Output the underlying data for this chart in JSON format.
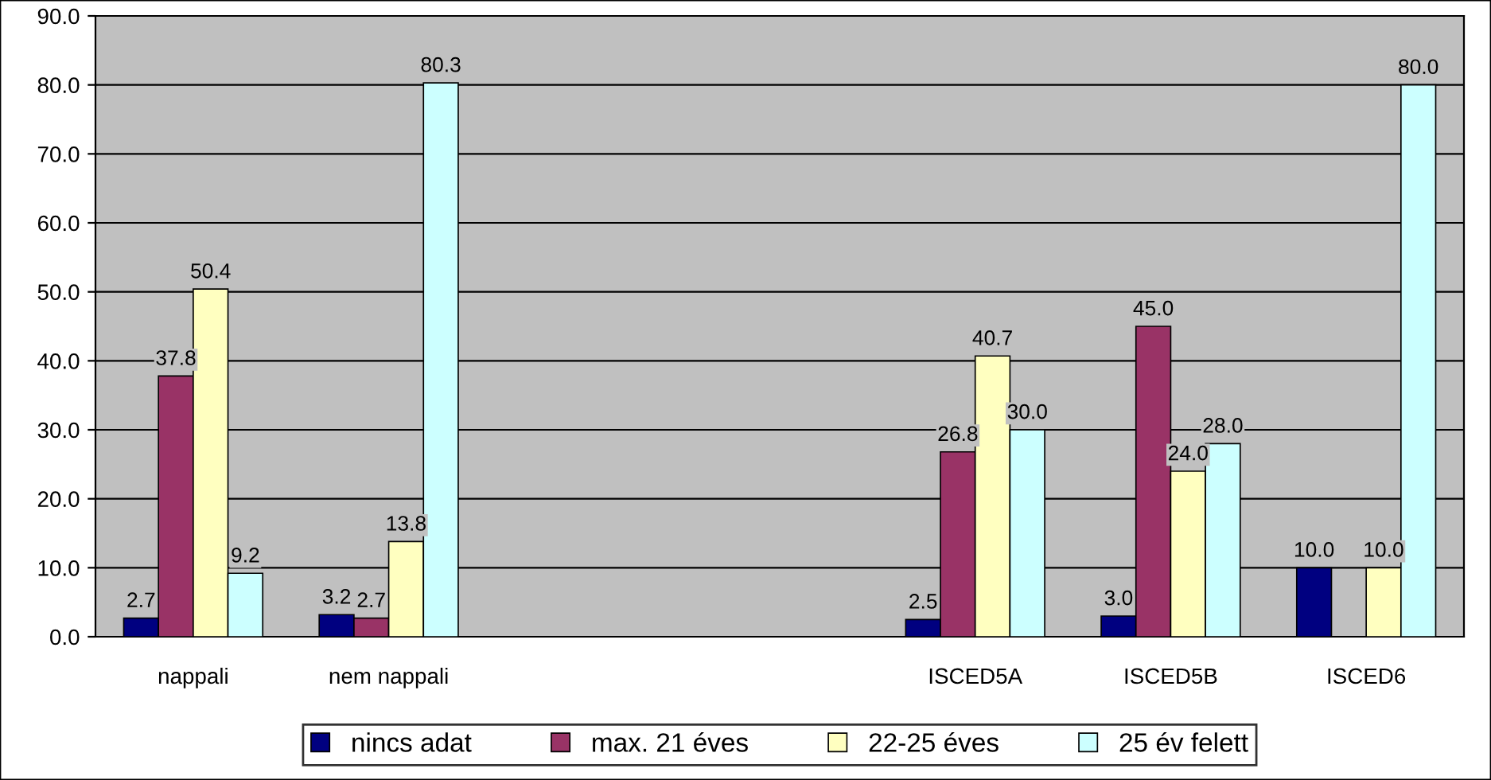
{
  "chart_data": {
    "type": "bar",
    "categories": [
      "nappali",
      "nem nappali",
      null,
      null,
      "ISCED5A",
      "ISCED5B",
      "ISCED6"
    ],
    "series": [
      {
        "name": "nincs adat",
        "color": "#000080",
        "values": [
          2.7,
          3.2,
          null,
          null,
          2.5,
          3.0,
          10.0
        ],
        "value_labels": [
          "2.7",
          "3.2",
          null,
          null,
          "2.5",
          "3.0",
          "10.0"
        ]
      },
      {
        "name": "max. 21 éves",
        "color": "#993366",
        "values": [
          37.8,
          2.7,
          null,
          null,
          26.8,
          45.0,
          null
        ],
        "value_labels": [
          "37.8",
          "2.7",
          null,
          null,
          "26.8",
          "45.0",
          null
        ]
      },
      {
        "name": "22-25 éves",
        "color": "#ffffc0",
        "values": [
          50.4,
          13.8,
          null,
          null,
          40.7,
          24.0,
          10.0
        ],
        "value_labels": [
          "50.4",
          "13.8",
          null,
          null,
          "40.7",
          "24.0",
          "10.0"
        ]
      },
      {
        "name": "25 év felett",
        "color": "#ccffff",
        "values": [
          9.2,
          80.3,
          null,
          null,
          30.0,
          28.0,
          80.0
        ],
        "value_labels": [
          "9.2",
          "80.3",
          null,
          null,
          "30.0",
          "28.0",
          "80.0"
        ]
      }
    ],
    "ylim": [
      0,
      90
    ],
    "yticks": [
      {
        "value": 0,
        "label": "0.0"
      },
      {
        "value": 10,
        "label": "10.0"
      },
      {
        "value": 20,
        "label": "20.0"
      },
      {
        "value": 30,
        "label": "30.0"
      },
      {
        "value": 40,
        "label": "40.0"
      },
      {
        "value": 50,
        "label": "50.0"
      },
      {
        "value": 60,
        "label": "60.0"
      },
      {
        "value": 70,
        "label": "70.0"
      },
      {
        "value": 80,
        "label": "80.0"
      },
      {
        "value": 90,
        "label": "90.0"
      }
    ],
    "grid": "y",
    "legend": "bottom"
  }
}
